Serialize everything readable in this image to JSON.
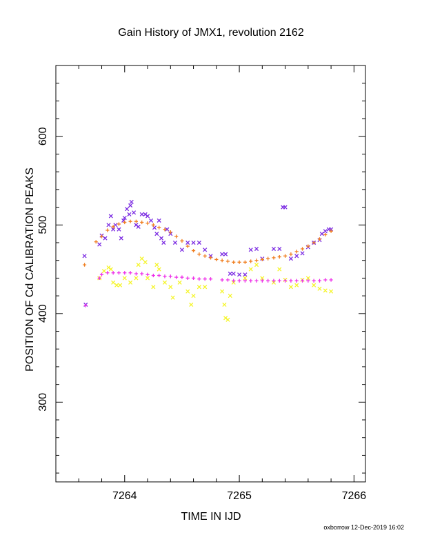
{
  "chart_data": {
    "type": "scatter",
    "title": "Gain History of JMX1, revolution 2162",
    "xlabel": "TIME IN IJD",
    "ylabel": "POSITION OF Cd CALIBRATION PEAKS",
    "xlim": [
      7263.4,
      7266.1
    ],
    "ylim": [
      210,
      680
    ],
    "xticks": [
      7264,
      7265,
      7266
    ],
    "xtick_labels": [
      "7264",
      "7265",
      "7266"
    ],
    "yticks": [
      300,
      400,
      500,
      600
    ],
    "ytick_labels": [
      "300",
      "400",
      "500",
      "600"
    ],
    "grid": false,
    "legend": "none",
    "series": [
      {
        "marker": "x",
        "color": "#7b2be2",
        "points": [
          [
            7263.65,
            465
          ],
          [
            7263.66,
            410
          ],
          [
            7263.78,
            478
          ],
          [
            7263.8,
            488
          ],
          [
            7263.83,
            485
          ],
          [
            7263.86,
            500
          ],
          [
            7263.88,
            510
          ],
          [
            7263.9,
            495
          ],
          [
            7263.92,
            500
          ],
          [
            7263.95,
            495
          ],
          [
            7263.97,
            485
          ],
          [
            7263.99,
            505
          ],
          [
            7264.0,
            508
          ],
          [
            7264.02,
            518
          ],
          [
            7264.04,
            512
          ],
          [
            7264.05,
            522
          ],
          [
            7264.06,
            526
          ],
          [
            7264.08,
            514
          ],
          [
            7264.1,
            500
          ],
          [
            7264.12,
            498
          ],
          [
            7264.15,
            512
          ],
          [
            7264.18,
            512
          ],
          [
            7264.2,
            510
          ],
          [
            7264.23,
            505
          ],
          [
            7264.26,
            497
          ],
          [
            7264.28,
            490
          ],
          [
            7264.3,
            505
          ],
          [
            7264.32,
            485
          ],
          [
            7264.34,
            480
          ],
          [
            7264.37,
            495
          ],
          [
            7264.4,
            490
          ],
          [
            7264.44,
            480
          ],
          [
            7264.5,
            472
          ],
          [
            7264.55,
            480
          ],
          [
            7264.6,
            480
          ],
          [
            7264.65,
            480
          ],
          [
            7264.7,
            472
          ],
          [
            7264.75,
            465
          ],
          [
            7264.85,
            467
          ],
          [
            7264.88,
            467
          ],
          [
            7264.92,
            445
          ],
          [
            7264.95,
            445
          ],
          [
            7265.0,
            444
          ],
          [
            7265.05,
            444
          ],
          [
            7265.1,
            472
          ],
          [
            7265.15,
            473
          ],
          [
            7265.2,
            462
          ],
          [
            7265.3,
            473
          ],
          [
            7265.35,
            473
          ],
          [
            7265.38,
            520
          ],
          [
            7265.4,
            520
          ],
          [
            7265.45,
            462
          ],
          [
            7265.5,
            465
          ],
          [
            7265.55,
            468
          ],
          [
            7265.6,
            475
          ],
          [
            7265.65,
            480
          ],
          [
            7265.7,
            483
          ],
          [
            7265.72,
            490
          ],
          [
            7265.75,
            493
          ],
          [
            7265.78,
            495
          ],
          [
            7265.8,
            495
          ]
        ]
      },
      {
        "marker": "+",
        "color": "#f07d1e",
        "points": [
          [
            7263.65,
            455
          ],
          [
            7263.75,
            481
          ],
          [
            7263.8,
            487
          ],
          [
            7263.85,
            494
          ],
          [
            7263.9,
            498
          ],
          [
            7263.95,
            501
          ],
          [
            7264.0,
            503
          ],
          [
            7264.05,
            504
          ],
          [
            7264.1,
            504
          ],
          [
            7264.15,
            503
          ],
          [
            7264.2,
            502
          ],
          [
            7264.25,
            500
          ],
          [
            7264.3,
            497
          ],
          [
            7264.35,
            495
          ],
          [
            7264.4,
            492
          ],
          [
            7264.45,
            487
          ],
          [
            7264.5,
            482
          ],
          [
            7264.55,
            476
          ],
          [
            7264.6,
            471
          ],
          [
            7264.65,
            467
          ],
          [
            7264.7,
            465
          ],
          [
            7264.75,
            463
          ],
          [
            7264.8,
            461
          ],
          [
            7264.85,
            460
          ],
          [
            7264.9,
            459
          ],
          [
            7264.95,
            458
          ],
          [
            7265.0,
            458
          ],
          [
            7265.05,
            458
          ],
          [
            7265.1,
            459
          ],
          [
            7265.15,
            460
          ],
          [
            7265.2,
            461
          ],
          [
            7265.25,
            462
          ],
          [
            7265.3,
            463
          ],
          [
            7265.35,
            464
          ],
          [
            7265.4,
            465
          ],
          [
            7265.45,
            467
          ],
          [
            7265.5,
            470
          ],
          [
            7265.55,
            473
          ],
          [
            7265.6,
            476
          ],
          [
            7265.65,
            480
          ],
          [
            7265.7,
            484
          ],
          [
            7265.75,
            489
          ],
          [
            7265.8,
            493
          ]
        ]
      },
      {
        "marker": "x",
        "color": "#f5f52a",
        "points": [
          [
            7263.78,
            440
          ],
          [
            7263.82,
            448
          ],
          [
            7263.86,
            452
          ],
          [
            7263.88,
            450
          ],
          [
            7263.9,
            435
          ],
          [
            7263.93,
            432
          ],
          [
            7263.96,
            432
          ],
          [
            7264.0,
            440
          ],
          [
            7264.05,
            435
          ],
          [
            7264.1,
            440
          ],
          [
            7264.12,
            455
          ],
          [
            7264.15,
            462
          ],
          [
            7264.18,
            458
          ],
          [
            7264.2,
            440
          ],
          [
            7264.25,
            430
          ],
          [
            7264.28,
            455
          ],
          [
            7264.3,
            450
          ],
          [
            7264.35,
            435
          ],
          [
            7264.4,
            430
          ],
          [
            7264.42,
            418
          ],
          [
            7264.48,
            435
          ],
          [
            7264.55,
            425
          ],
          [
            7264.58,
            410
          ],
          [
            7264.6,
            420
          ],
          [
            7264.65,
            430
          ],
          [
            7264.7,
            430
          ],
          [
            7264.85,
            425
          ],
          [
            7264.87,
            410
          ],
          [
            7264.88,
            395
          ],
          [
            7264.9,
            393
          ],
          [
            7264.92,
            420
          ],
          [
            7264.95,
            435
          ],
          [
            7265.05,
            440
          ],
          [
            7265.1,
            450
          ],
          [
            7265.15,
            455
          ],
          [
            7265.2,
            440
          ],
          [
            7265.3,
            435
          ],
          [
            7265.35,
            450
          ],
          [
            7265.4,
            438
          ],
          [
            7265.45,
            430
          ],
          [
            7265.5,
            432
          ],
          [
            7265.55,
            438
          ],
          [
            7265.6,
            440
          ],
          [
            7265.65,
            432
          ],
          [
            7265.7,
            428
          ],
          [
            7265.75,
            426
          ],
          [
            7265.8,
            425
          ]
        ]
      },
      {
        "marker": "+",
        "color": "#ee2ee8",
        "points": [
          [
            7263.66,
            409
          ],
          [
            7263.78,
            440
          ],
          [
            7263.8,
            444
          ],
          [
            7263.85,
            446
          ],
          [
            7263.9,
            446
          ],
          [
            7263.95,
            446
          ],
          [
            7264.0,
            446
          ],
          [
            7264.05,
            446
          ],
          [
            7264.1,
            445
          ],
          [
            7264.15,
            445
          ],
          [
            7264.2,
            444
          ],
          [
            7264.25,
            443
          ],
          [
            7264.3,
            443
          ],
          [
            7264.35,
            442
          ],
          [
            7264.4,
            442
          ],
          [
            7264.45,
            441
          ],
          [
            7264.5,
            441
          ],
          [
            7264.55,
            440
          ],
          [
            7264.6,
            440
          ],
          [
            7264.65,
            439
          ],
          [
            7264.7,
            439
          ],
          [
            7264.75,
            439
          ],
          [
            7264.85,
            438
          ],
          [
            7264.9,
            438
          ],
          [
            7264.95,
            437
          ],
          [
            7265.0,
            437
          ],
          [
            7265.05,
            437
          ],
          [
            7265.1,
            437
          ],
          [
            7265.15,
            437
          ],
          [
            7265.2,
            437
          ],
          [
            7265.25,
            437
          ],
          [
            7265.3,
            437
          ],
          [
            7265.35,
            437
          ],
          [
            7265.4,
            437
          ],
          [
            7265.45,
            437
          ],
          [
            7265.5,
            437
          ],
          [
            7265.55,
            437
          ],
          [
            7265.6,
            437
          ],
          [
            7265.65,
            437
          ],
          [
            7265.7,
            437
          ],
          [
            7265.75,
            438
          ],
          [
            7265.8,
            438
          ]
        ]
      }
    ]
  },
  "footer": "oxborrow 12-Dec-2019 16:02"
}
